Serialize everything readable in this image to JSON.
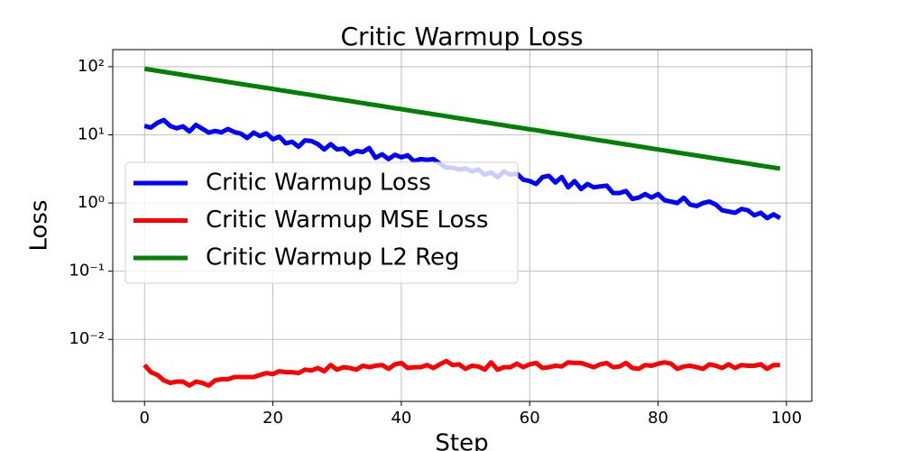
{
  "chart_data": {
    "type": "line",
    "title": "Critic Warmup Loss",
    "x_label": "Step",
    "y_label": "Loss",
    "x": [
      0,
      1,
      2,
      3,
      4,
      5,
      6,
      7,
      8,
      9,
      10,
      11,
      12,
      13,
      14,
      15,
      16,
      17,
      18,
      19,
      20,
      21,
      22,
      23,
      24,
      25,
      26,
      27,
      28,
      29,
      30,
      31,
      32,
      33,
      34,
      35,
      36,
      37,
      38,
      39,
      40,
      41,
      42,
      43,
      44,
      45,
      46,
      47,
      48,
      49,
      50,
      51,
      52,
      53,
      54,
      55,
      56,
      57,
      58,
      59,
      60,
      61,
      62,
      63,
      64,
      65,
      66,
      67,
      68,
      69,
      70,
      71,
      72,
      73,
      74,
      75,
      76,
      77,
      78,
      79,
      80,
      81,
      82,
      83,
      84,
      85,
      86,
      87,
      88,
      89,
      90,
      91,
      92,
      93,
      94,
      95,
      96,
      97,
      98,
      99
    ],
    "series": [
      {
        "name": "Critic Warmup Loss",
        "color": "#0000ff",
        "values": [
          13.5,
          12.8,
          15,
          16.5,
          13.5,
          12.5,
          13.3,
          11.2,
          14,
          12.3,
          10.8,
          11.4,
          10.9,
          12.2,
          11,
          10.4,
          9,
          10.8,
          9.6,
          10.5,
          8.6,
          9.4,
          7.5,
          7.9,
          6.7,
          8.3,
          8.1,
          7.3,
          6.1,
          7.3,
          6.1,
          6.3,
          5.2,
          5.8,
          5.6,
          6.4,
          4.6,
          5.2,
          4.4,
          5.1,
          4.7,
          5.0,
          4.1,
          4.4,
          4.3,
          4.4,
          3.8,
          3.3,
          3.3,
          3.1,
          3.2,
          2.9,
          3.1,
          2.6,
          2.8,
          2.4,
          2.9,
          2.6,
          2.7,
          2.2,
          2.1,
          1.9,
          2.4,
          2.5,
          2.0,
          2.4,
          1.7,
          2.1,
          1.6,
          1.9,
          1.7,
          1.75,
          1.8,
          1.4,
          1.4,
          1.5,
          1.15,
          1.2,
          1.35,
          1.2,
          1.35,
          1.1,
          1.05,
          1.0,
          1.2,
          0.95,
          0.9,
          1.0,
          1.05,
          0.95,
          0.78,
          0.75,
          0.72,
          0.82,
          0.78,
          0.66,
          0.72,
          0.6,
          0.68,
          0.6
        ]
      },
      {
        "name": "Critic Warmup MSE Loss",
        "color": "#ff0000",
        "values": [
          0.0042,
          0.0033,
          0.003,
          0.0025,
          0.0023,
          0.0024,
          0.0024,
          0.0021,
          0.0024,
          0.0023,
          0.0021,
          0.0025,
          0.0026,
          0.0026,
          0.0028,
          0.0028,
          0.0028,
          0.0028,
          0.003,
          0.0032,
          0.0031,
          0.0034,
          0.0033,
          0.0033,
          0.0032,
          0.0036,
          0.0035,
          0.0038,
          0.0034,
          0.0042,
          0.0036,
          0.0039,
          0.0038,
          0.0036,
          0.0041,
          0.0039,
          0.0041,
          0.0042,
          0.0037,
          0.0043,
          0.0045,
          0.0038,
          0.0039,
          0.0039,
          0.0042,
          0.0038,
          0.0043,
          0.0048,
          0.0042,
          0.0043,
          0.0037,
          0.0041,
          0.004,
          0.0036,
          0.0046,
          0.0036,
          0.0039,
          0.0039,
          0.0044,
          0.0039,
          0.0043,
          0.0045,
          0.0038,
          0.0039,
          0.0041,
          0.004,
          0.0046,
          0.0045,
          0.0045,
          0.0042,
          0.0039,
          0.0043,
          0.0045,
          0.0039,
          0.004,
          0.0045,
          0.0038,
          0.0037,
          0.0042,
          0.0041,
          0.0044,
          0.0046,
          0.0044,
          0.0037,
          0.004,
          0.0041,
          0.0039,
          0.0037,
          0.0043,
          0.0041,
          0.0038,
          0.0043,
          0.0038,
          0.0042,
          0.0041,
          0.0041,
          0.0043,
          0.0037,
          0.0042,
          0.0042
        ]
      },
      {
        "name": "Critic Warmup L2 Reg",
        "color": "#008000",
        "values": [
          93,
          89.9,
          86.9,
          84.0,
          81.2,
          78.4,
          75.8,
          73.3,
          70.8,
          68.5,
          66.2,
          64.0,
          61.8,
          59.7,
          57.7,
          55.8,
          53.9,
          52.1,
          50.4,
          48.7,
          47.1,
          45.5,
          44.0,
          42.5,
          41.1,
          39.7,
          38.4,
          37.1,
          35.8,
          34.6,
          33.5,
          32.4,
          31.3,
          30.2,
          29.2,
          28.2,
          27.3,
          26.4,
          25.5,
          24.6,
          23.8,
          23.0,
          22.2,
          21.5,
          20.8,
          20.1,
          19.4,
          18.8,
          18.1,
          17.5,
          16.95,
          16.4,
          15.8,
          15.3,
          14.8,
          14.3,
          13.8,
          13.3,
          12.9,
          12.5,
          12.06,
          11.7,
          11.3,
          10.9,
          10.5,
          10.2,
          9.84,
          9.51,
          9.19,
          8.88,
          8.58,
          8.29,
          8.02,
          7.75,
          7.49,
          7.24,
          7.0,
          6.76,
          6.54,
          6.32,
          6.1,
          5.9,
          5.7,
          5.51,
          5.33,
          5.15,
          4.98,
          4.81,
          4.65,
          4.49,
          4.34,
          4.2,
          4.06,
          3.92,
          3.79,
          3.66,
          3.54,
          3.42,
          3.31,
          3.2
        ]
      }
    ],
    "xlim": [
      -4.95,
      103.95
    ],
    "xticks": [
      0,
      20,
      40,
      60,
      80,
      100
    ],
    "ylim": [
      0.00123,
      178
    ],
    "yscale": "log",
    "yticks": [
      {
        "value": 0.01,
        "label": "10⁻²"
      },
      {
        "value": 0.1,
        "label": "10⁻¹"
      },
      {
        "value": 1,
        "label": "10⁰"
      },
      {
        "value": 10,
        "label": "10¹"
      },
      {
        "value": 100,
        "label": "10²"
      }
    ],
    "grid": true,
    "legend": "center left"
  }
}
